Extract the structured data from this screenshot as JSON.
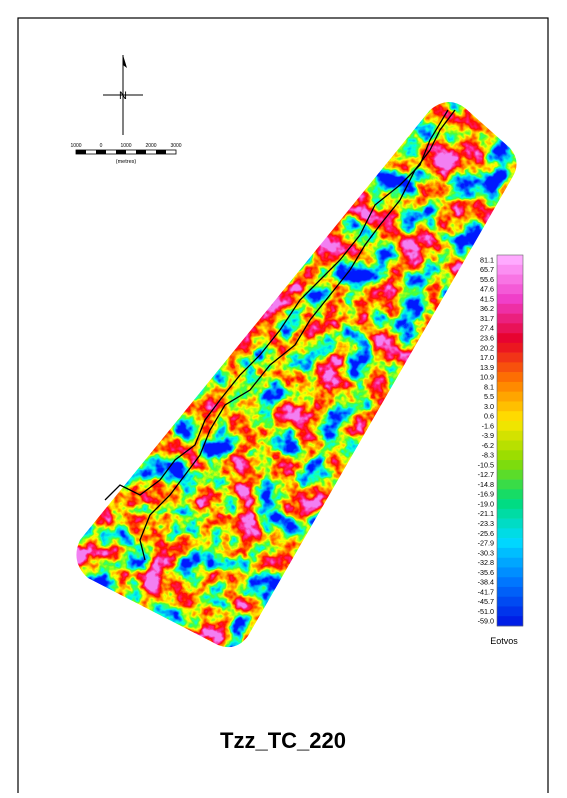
{
  "map": {
    "title": "Tzz_TC_220",
    "north_label": "N",
    "scale_bar": {
      "labels": [
        "1000",
        "0",
        "1000",
        "2000",
        "3000"
      ],
      "unit": "(metres)"
    },
    "legend": {
      "labels": [
        "81.1",
        "65.7",
        "55.6",
        "47.6",
        "41.5",
        "36.2",
        "31.7",
        "27.4",
        "23.6",
        "20.2",
        "17.0",
        "13.9",
        "10.9",
        "8.1",
        "5.5",
        "3.0",
        "0.6",
        "-1.6",
        "-3.9",
        "-6.2",
        "-8.3",
        "-10.5",
        "-12.7",
        "-14.8",
        "-16.9",
        "-19.0",
        "-21.1",
        "-23.3",
        "-25.6",
        "-27.9",
        "-30.3",
        "-32.8",
        "-35.6",
        "-38.4",
        "-41.7",
        "-45.7",
        "-51.0",
        "-59.0"
      ],
      "unit": "Eotvos"
    }
  }
}
